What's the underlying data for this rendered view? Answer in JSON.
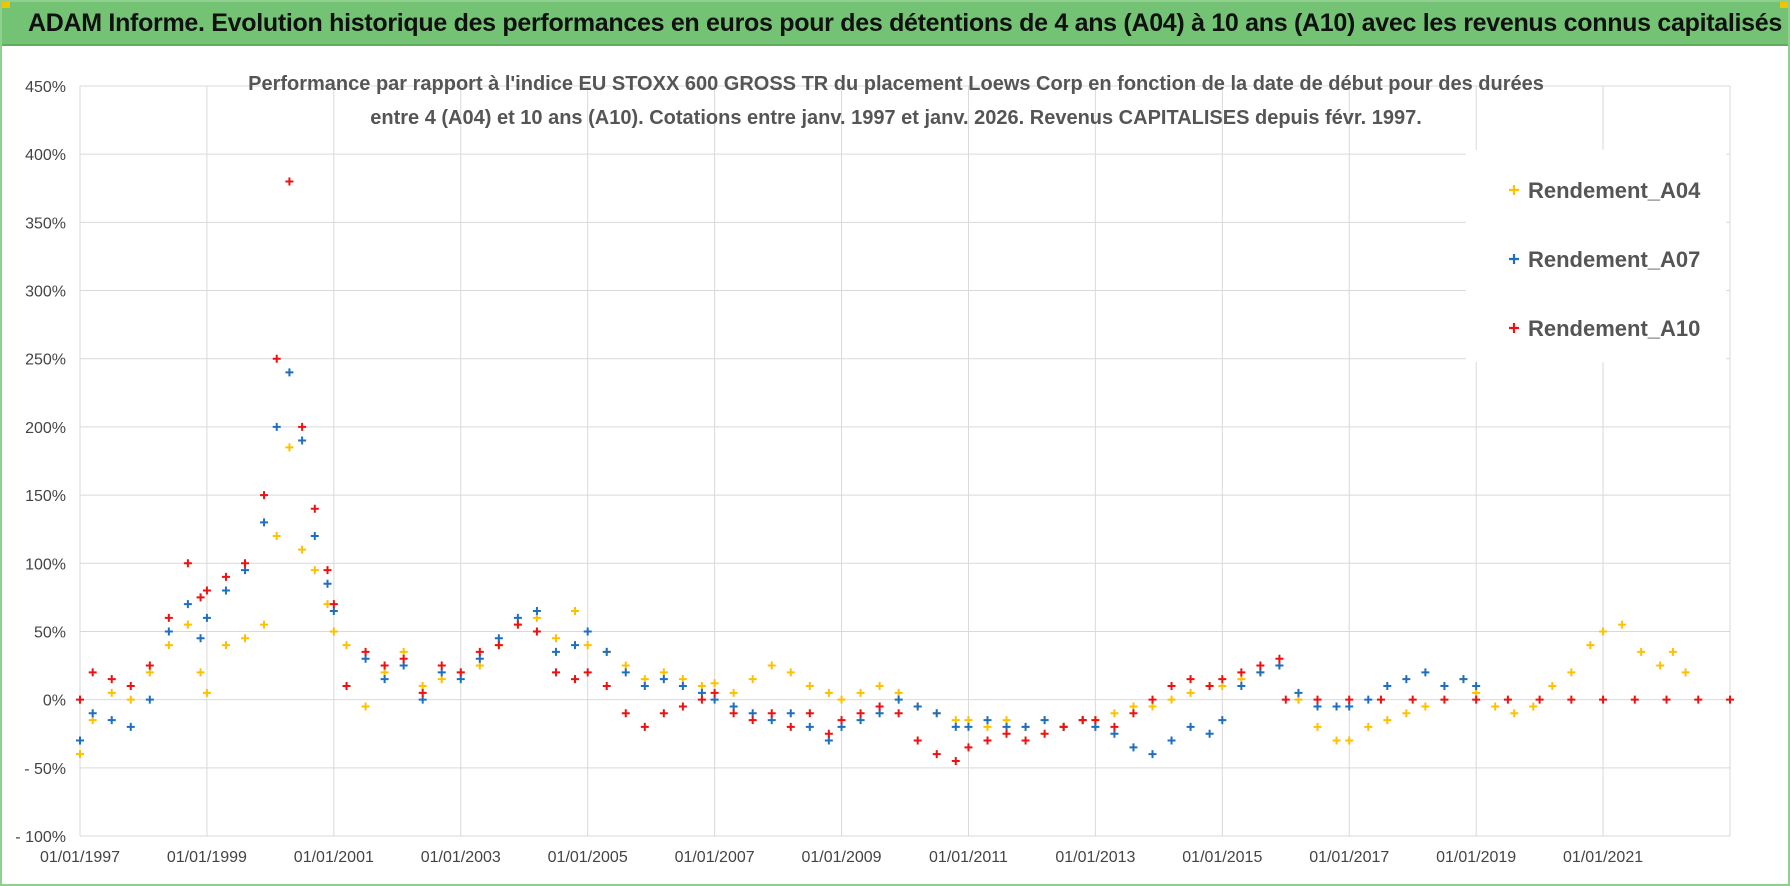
{
  "header": {
    "title": "ADAM Informe. Evolution historique des performances en euros pour des détentions de 4 ans (A04) à 10 ans (A10) avec les revenus connus capitalisés"
  },
  "colors": {
    "banner": "#74c274",
    "A04": "#ffc000",
    "A07": "#1f6fc0",
    "A10": "#ee1111",
    "grid": "#d9d9d9"
  },
  "chart_data": {
    "type": "scatter",
    "title_line1": "Performance par rapport à l'indice EU STOXX 600 GROSS TR  du placement Loews Corp en fonction de la date de début pour des durées",
    "title_line2": "entre 4 (A04) et 10 ans (A10).  Cotations entre janv. 1997 et janv. 2026. Revenus CAPITALISES depuis févr. 1997.",
    "xlabel": "",
    "ylabel": "",
    "xlim": [
      1997.0,
      2023.0
    ],
    "ylim": [
      -100,
      450
    ],
    "grid": true,
    "legend_position": "top-right",
    "y_ticks": [
      {
        "value": 450,
        "label": "450%"
      },
      {
        "value": 400,
        "label": "400%"
      },
      {
        "value": 350,
        "label": "350%"
      },
      {
        "value": 300,
        "label": "300%"
      },
      {
        "value": 250,
        "label": "250%"
      },
      {
        "value": 200,
        "label": "200%"
      },
      {
        "value": 150,
        "label": "150%"
      },
      {
        "value": 100,
        "label": "100%"
      },
      {
        "value": 50,
        "label": "50%"
      },
      {
        "value": 0,
        "label": "0%"
      },
      {
        "value": -50,
        "label": "- 50%"
      },
      {
        "value": -100,
        "label": "- 100%"
      }
    ],
    "x_ticks": [
      {
        "value": 1997,
        "label": "01/01/1997"
      },
      {
        "value": 1999,
        "label": "01/01/1999"
      },
      {
        "value": 2001,
        "label": "01/01/2001"
      },
      {
        "value": 2003,
        "label": "01/01/2003"
      },
      {
        "value": 2005,
        "label": "01/01/2005"
      },
      {
        "value": 2007,
        "label": "01/01/2007"
      },
      {
        "value": 2009,
        "label": "01/01/2009"
      },
      {
        "value": 2011,
        "label": "01/01/2011"
      },
      {
        "value": 2013,
        "label": "01/01/2013"
      },
      {
        "value": 2015,
        "label": "01/01/2015"
      },
      {
        "value": 2017,
        "label": "01/01/2017"
      },
      {
        "value": 2019,
        "label": "01/01/2019"
      },
      {
        "value": 2021,
        "label": "01/01/2021"
      }
    ],
    "series": [
      {
        "name": "Rendement_A04",
        "color": "#ffc000",
        "x": [
          1997.0,
          1997.2,
          1997.5,
          1997.8,
          1998.1,
          1998.4,
          1998.7,
          1998.9,
          1999.0,
          1999.3,
          1999.6,
          1999.9,
          2000.1,
          2000.3,
          2000.5,
          2000.7,
          2000.9,
          2001.0,
          2001.2,
          2001.5,
          2001.8,
          2002.1,
          2002.4,
          2002.7,
          2003.0,
          2003.3,
          2003.6,
          2003.9,
          2004.2,
          2004.5,
          2004.8,
          2005.0,
          2005.3,
          2005.6,
          2005.9,
          2006.2,
          2006.5,
          2006.8,
          2007.0,
          2007.3,
          2007.6,
          2007.9,
          2008.2,
          2008.5,
          2008.8,
          2009.0,
          2009.3,
          2009.6,
          2009.9,
          2010.2,
          2010.5,
          2010.8,
          2011.0,
          2011.3,
          2011.6,
          2011.9,
          2012.2,
          2012.5,
          2012.8,
          2013.0,
          2013.3,
          2013.6,
          2013.9,
          2014.2,
          2014.5,
          2014.8,
          2015.0,
          2015.3,
          2015.6,
          2015.9,
          2016.2,
          2016.5,
          2016.8,
          2017.0,
          2017.3,
          2017.6,
          2017.9,
          2018.2,
          2018.5,
          2018.8,
          2019.0,
          2019.3,
          2019.6,
          2019.9,
          2020.2,
          2020.5,
          2020.8,
          2021.0,
          2021.3,
          2021.6,
          2021.9,
          2022.1,
          2022.3
        ],
        "y": [
          -40,
          -15,
          5,
          0,
          20,
          40,
          55,
          20,
          5,
          40,
          45,
          55,
          120,
          185,
          110,
          95,
          70,
          50,
          40,
          -5,
          20,
          35,
          10,
          15,
          20,
          25,
          40,
          55,
          60,
          45,
          65,
          40,
          35,
          25,
          15,
          20,
          15,
          10,
          12,
          5,
          15,
          25,
          20,
          10,
          5,
          0,
          5,
          10,
          5,
          -5,
          -10,
          -15,
          -15,
          -20,
          -15,
          -20,
          -15,
          -20,
          -15,
          -15,
          -10,
          -5,
          -5,
          0,
          5,
          10,
          10,
          15,
          20,
          25,
          0,
          -20,
          -30,
          -30,
          -20,
          -15,
          -10,
          -5,
          10,
          15,
          5,
          -5,
          -10,
          -5,
          10,
          20,
          40,
          50,
          55,
          35,
          25,
          35,
          20
        ]
      },
      {
        "name": "Rendement_A07",
        "color": "#1f6fc0",
        "x": [
          1997.0,
          1997.2,
          1997.5,
          1997.8,
          1998.1,
          1998.4,
          1998.7,
          1998.9,
          1999.0,
          1999.3,
          1999.6,
          1999.9,
          2000.1,
          2000.3,
          2000.5,
          2000.7,
          2000.9,
          2001.0,
          2001.2,
          2001.5,
          2001.8,
          2002.1,
          2002.4,
          2002.7,
          2003.0,
          2003.3,
          2003.6,
          2003.9,
          2004.2,
          2004.5,
          2004.8,
          2005.0,
          2005.3,
          2005.6,
          2005.9,
          2006.2,
          2006.5,
          2006.8,
          2007.0,
          2007.3,
          2007.6,
          2007.9,
          2008.2,
          2008.5,
          2008.8,
          2009.0,
          2009.3,
          2009.6,
          2009.9,
          2010.2,
          2010.5,
          2010.8,
          2011.0,
          2011.3,
          2011.6,
          2011.9,
          2012.2,
          2012.5,
          2012.8,
          2013.0,
          2013.3,
          2013.6,
          2013.9,
          2014.2,
          2014.5,
          2014.8,
          2015.0,
          2015.3,
          2015.6,
          2015.9,
          2016.2,
          2016.5,
          2016.8,
          2017.0,
          2017.3,
          2017.6,
          2017.9,
          2018.2,
          2018.5,
          2018.8,
          2019.0
        ],
        "y": [
          -30,
          -10,
          -15,
          -20,
          0,
          50,
          70,
          45,
          60,
          80,
          95,
          130,
          200,
          240,
          190,
          120,
          85,
          65,
          10,
          30,
          15,
          25,
          0,
          20,
          15,
          30,
          45,
          60,
          65,
          35,
          40,
          50,
          35,
          20,
          10,
          15,
          10,
          5,
          0,
          -5,
          -10,
          -15,
          -10,
          -20,
          -30,
          -20,
          -15,
          -10,
          0,
          -5,
          -10,
          -20,
          -20,
          -15,
          -20,
          -20,
          -15,
          -20,
          -15,
          -20,
          -25,
          -35,
          -40,
          -30,
          -20,
          -25,
          -15,
          10,
          20,
          25,
          5,
          -5,
          -5,
          -5,
          0,
          10,
          15,
          20,
          10,
          15,
          10
        ]
      },
      {
        "name": "Rendement_A10",
        "color": "#ee1111",
        "x": [
          1997.0,
          1997.2,
          1997.5,
          1997.8,
          1998.1,
          1998.4,
          1998.7,
          1998.9,
          1999.0,
          1999.3,
          1999.6,
          1999.9,
          2000.1,
          2000.3,
          2000.5,
          2000.7,
          2000.9,
          2001.0,
          2001.2,
          2001.5,
          2001.8,
          2002.1,
          2002.4,
          2002.7,
          2003.0,
          2003.3,
          2003.6,
          2003.9,
          2004.2,
          2004.5,
          2004.8,
          2005.0,
          2005.3,
          2005.6,
          2005.9,
          2006.2,
          2006.5,
          2006.8,
          2007.0,
          2007.3,
          2007.6,
          2007.9,
          2008.2,
          2008.5,
          2008.8,
          2009.0,
          2009.3,
          2009.6,
          2009.9,
          2010.2,
          2010.5,
          2010.8,
          2011.0,
          2011.3,
          2011.6,
          2011.9,
          2012.2,
          2012.5,
          2012.8,
          2013.0,
          2013.3,
          2013.6,
          2013.9,
          2014.2,
          2014.5,
          2014.8,
          2015.0,
          2015.3,
          2015.6,
          2015.9,
          2016.0,
          2016.5,
          2017.0,
          2017.5,
          2018.0,
          2018.5,
          2019.0,
          2019.5,
          2020.0,
          2020.5,
          2021.0,
          2021.5,
          2022.0,
          2022.5,
          2023.0
        ],
        "y": [
          0,
          20,
          15,
          10,
          25,
          60,
          100,
          75,
          80,
          90,
          100,
          150,
          250,
          380,
          200,
          140,
          95,
          70,
          10,
          35,
          25,
          30,
          5,
          25,
          20,
          35,
          40,
          55,
          50,
          20,
          15,
          20,
          10,
          -10,
          -20,
          -10,
          -5,
          0,
          5,
          -10,
          -15,
          -10,
          -20,
          -10,
          -25,
          -15,
          -10,
          -5,
          -10,
          -30,
          -40,
          -45,
          -35,
          -30,
          -25,
          -30,
          -25,
          -20,
          -15,
          -15,
          -20,
          -10,
          0,
          10,
          15,
          10,
          15,
          20,
          25,
          30,
          0,
          0,
          0,
          0,
          0,
          0,
          0,
          0,
          0,
          0,
          0,
          0,
          0,
          0,
          0
        ]
      }
    ]
  }
}
